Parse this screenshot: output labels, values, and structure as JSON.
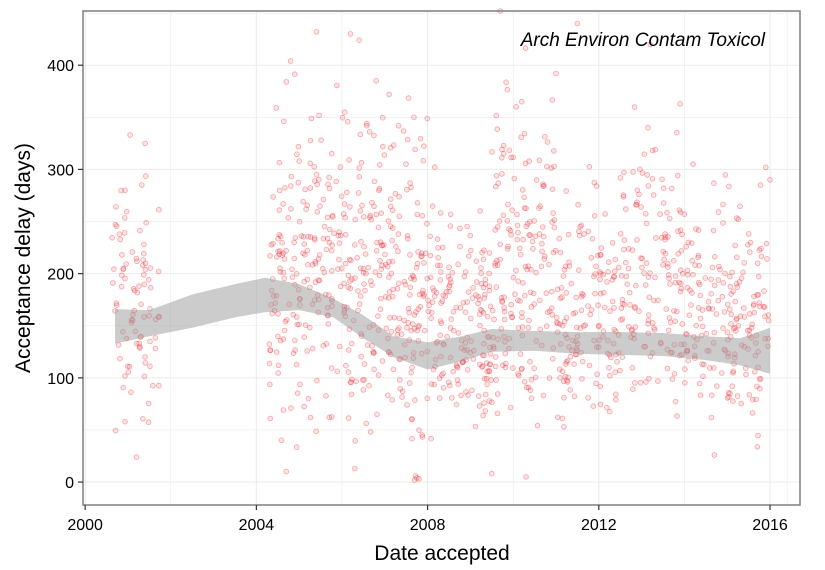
{
  "chart_data": {
    "type": "scatter",
    "title": "",
    "annotation": "Arch Environ Contam Toxicol",
    "xlabel": "Date accepted",
    "ylabel": "Acceptance delay (days)",
    "x_type": "year",
    "xlim": [
      1999.95,
      2016.7
    ],
    "ylim": [
      -22,
      452
    ],
    "x_ticks": [
      2000,
      2004,
      2008,
      2012,
      2016
    ],
    "x_tick_labels": [
      "2000",
      "2004",
      "2008",
      "2012",
      "2016"
    ],
    "y_ticks": [
      0,
      100,
      200,
      300,
      400
    ],
    "y_tick_labels": [
      "0",
      "100",
      "200",
      "300",
      "400"
    ],
    "grid": true,
    "legend": "none",
    "colors": {
      "points": "#e8212a",
      "smooth_band": "#999999",
      "grid": "#ebebeb",
      "panel_border": "#7f7f7f"
    },
    "smooth_band": {
      "x": [
        2000.7,
        2001.5,
        2002.5,
        2003.5,
        2004.2,
        2005.0,
        2005.8,
        2006.5,
        2007.2,
        2008.0,
        2008.8,
        2009.5,
        2010.5,
        2011.5,
        2012.5,
        2013.5,
        2014.5,
        2015.3,
        2016.0
      ],
      "lower": [
        133,
        140,
        148,
        158,
        163,
        165,
        158,
        138,
        120,
        108,
        116,
        125,
        126,
        123,
        122,
        121,
        117,
        112,
        104
      ],
      "upper": [
        166,
        165,
        180,
        190,
        196,
        190,
        176,
        160,
        140,
        134,
        140,
        147,
        145,
        144,
        144,
        143,
        140,
        138,
        148
      ]
    },
    "series": [
      {
        "clusters": [
          {
            "x": [
              2000.6,
              2001.75
            ],
            "y": [
              20,
              340
            ],
            "n": 90
          },
          {
            "x": [
              2004.3,
              2005.5
            ],
            "y": [
              10,
              440
            ],
            "n": 140
          },
          {
            "x": [
              2005.5,
              2007.0
            ],
            "y": [
              20,
              435
            ],
            "n": 170
          },
          {
            "x": [
              2007.0,
              2008.2
            ],
            "y": [
              0,
              400
            ],
            "n": 150
          },
          {
            "x": [
              2008.2,
              2009.5
            ],
            "y": [
              10,
              300
            ],
            "n": 150
          },
          {
            "x": [
              2009.5,
              2011.0
            ],
            "y": [
              0,
              450
            ],
            "n": 180
          },
          {
            "x": [
              2011.0,
              2012.5
            ],
            "y": [
              20,
              330
            ],
            "n": 150
          },
          {
            "x": [
              2012.5,
              2014.0
            ],
            "y": [
              20,
              425
            ],
            "n": 150
          },
          {
            "x": [
              2014.0,
              2016.0
            ],
            "y": [
              20,
              330
            ],
            "n": 190
          }
        ],
        "points": [
          {
            "x": 2007.7,
            "y": 2
          },
          {
            "x": 2007.75,
            "y": 4
          },
          {
            "x": 2007.8,
            "y": 3
          },
          {
            "x": 2007.72,
            "y": 6
          },
          {
            "x": 2005.4,
            "y": 432
          },
          {
            "x": 2006.2,
            "y": 430
          },
          {
            "x": 2006.4,
            "y": 424
          },
          {
            "x": 2009.7,
            "y": 452
          },
          {
            "x": 2011.5,
            "y": 440
          },
          {
            "x": 2013.2,
            "y": 420
          },
          {
            "x": 2010.2,
            "y": 365
          },
          {
            "x": 2013.9,
            "y": 363
          },
          {
            "x": 2011.0,
            "y": 392
          },
          {
            "x": 2001.4,
            "y": 325
          },
          {
            "x": 2001.05,
            "y": 333
          },
          {
            "x": 2004.8,
            "y": 404
          },
          {
            "x": 2004.7,
            "y": 384
          },
          {
            "x": 2006.8,
            "y": 385
          },
          {
            "x": 2007.1,
            "y": 372
          },
          {
            "x": 2016.0,
            "y": 290
          },
          {
            "x": 2015.9,
            "y": 302
          },
          {
            "x": 2014.2,
            "y": 305
          },
          {
            "x": 2009.5,
            "y": 8
          },
          {
            "x": 2010.3,
            "y": 5
          },
          {
            "x": 2004.7,
            "y": 10
          },
          {
            "x": 2006.3,
            "y": 13
          },
          {
            "x": 2014.7,
            "y": 26
          },
          {
            "x": 2001.2,
            "y": 24
          }
        ]
      }
    ]
  }
}
